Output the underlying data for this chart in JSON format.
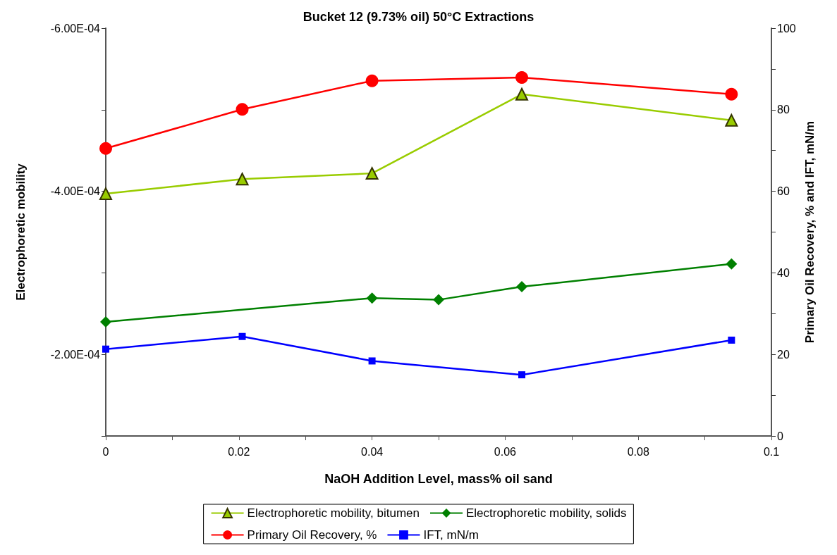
{
  "chart_data": {
    "type": "line",
    "title": "Bucket 12 (9.73% oil) 50°C Extractions",
    "xlabel": "NaOH Addition Level, mass% oil sand",
    "ylabel": "Electrophoretic mobility",
    "y2label": "Primary Oil Recovery, % and IFT, mN/m",
    "xlim": [
      0,
      0.1
    ],
    "xticks": [
      0,
      {
        "value": 0.01,
        "label": null
      },
      0.02,
      {
        "value": 0.03,
        "label": null
      },
      0.04,
      {
        "value": 0.05,
        "label": null
      },
      0.06,
      {
        "value": 0.07,
        "label": null
      },
      0.08,
      {
        "value": 0.09,
        "label": null
      },
      0.1
    ],
    "ylim": [
      -0.0001,
      -0.0006
    ],
    "yticks": [
      {
        "value": -0.0006,
        "label": "-6.00E-04"
      },
      {
        "value": -0.0005,
        "label": null
      },
      {
        "value": -0.0004,
        "label": "-4.00E-04"
      },
      {
        "value": -0.0003,
        "label": null
      },
      {
        "value": -0.0002,
        "label": "-2.00E-04"
      },
      {
        "value": -0.0001,
        "label": null
      }
    ],
    "y2lim": [
      0,
      100
    ],
    "y2ticks": [
      0,
      {
        "value": 10,
        "label": null
      },
      20,
      {
        "value": 30,
        "label": null
      },
      40,
      {
        "value": 50,
        "label": null
      },
      60,
      {
        "value": 70,
        "label": null
      },
      80,
      {
        "value": 90,
        "label": null
      },
      100
    ],
    "grid": false,
    "legend": "bottom",
    "series": [
      {
        "name": "Electrophoretic mobility, bitumen",
        "color": "#99cc00",
        "marker": "triangle",
        "x": [
          0,
          0.0205,
          0.04,
          0.0625,
          0.094
        ],
        "values": [
          -0.000397,
          -0.000415,
          -0.000422,
          -0.000519,
          -0.000487
        ]
      },
      {
        "name": "Electrophoretic mobility, solids",
        "color": "#008000",
        "marker": "diamond",
        "x": [
          0,
          0.04,
          0.05,
          0.0625,
          0.094
        ],
        "values": [
          -0.00024,
          -0.000269,
          -0.000267,
          -0.000283,
          -0.000311
        ]
      },
      {
        "name": "Primary Oil Recovery, %",
        "color": "#ff0000",
        "marker": "circle",
        "axis": "y2",
        "x": [
          0,
          0.0205,
          0.04,
          0.0625,
          0.094
        ],
        "values": [
          70.5,
          80.1,
          87.1,
          87.9,
          83.8
        ]
      },
      {
        "name": "IFT, mN/m",
        "color": "#0000ff",
        "marker": "square",
        "axis": "y2",
        "x": [
          0,
          0.0205,
          0.04,
          0.0625,
          0.094
        ],
        "values": [
          21.3,
          24.4,
          18.4,
          15.0,
          23.5
        ]
      }
    ]
  }
}
